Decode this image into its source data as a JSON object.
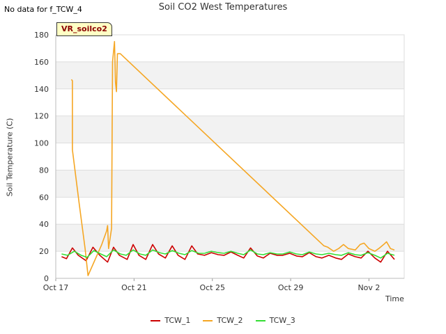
{
  "header": {
    "no_data_note": "No data for f_TCW_4",
    "badge_label": "VR_soilco2"
  },
  "chart_data": {
    "type": "line",
    "title": "Soil CO2 West Temperatures",
    "xlabel": "Time",
    "ylabel": "Soil Temperature (C)",
    "xlim": [
      0,
      17.8
    ],
    "ylim": [
      0,
      180
    ],
    "yticks": [
      0,
      20,
      40,
      60,
      80,
      100,
      120,
      140,
      160,
      180
    ],
    "xticks": [
      {
        "value": 0,
        "label": "Oct 17"
      },
      {
        "value": 4,
        "label": "Oct 21"
      },
      {
        "value": 8,
        "label": "Oct 25"
      },
      {
        "value": 12,
        "label": "Oct 29"
      },
      {
        "value": 16,
        "label": "Nov 2"
      }
    ],
    "grid": true,
    "legend_position": "bottom-center",
    "series": [
      {
        "name": "TCW_1",
        "color": "#cc0000",
        "points": [
          [
            0.3,
            16
          ],
          [
            0.55,
            14.5
          ],
          [
            0.85,
            22.5
          ],
          [
            1.15,
            17
          ],
          [
            1.55,
            13
          ],
          [
            1.9,
            23
          ],
          [
            2.25,
            17
          ],
          [
            2.65,
            12
          ],
          [
            2.95,
            23
          ],
          [
            3.25,
            17
          ],
          [
            3.65,
            14
          ],
          [
            3.95,
            25
          ],
          [
            4.25,
            17
          ],
          [
            4.6,
            14
          ],
          [
            4.95,
            25
          ],
          [
            5.25,
            18
          ],
          [
            5.6,
            15
          ],
          [
            5.95,
            24
          ],
          [
            6.25,
            17
          ],
          [
            6.6,
            14
          ],
          [
            6.95,
            24
          ],
          [
            7.25,
            18
          ],
          [
            7.6,
            17
          ],
          [
            7.95,
            19
          ],
          [
            8.3,
            17.5
          ],
          [
            8.6,
            17
          ],
          [
            8.95,
            19.5
          ],
          [
            9.3,
            17
          ],
          [
            9.6,
            15
          ],
          [
            9.95,
            22.5
          ],
          [
            10.3,
            16.5
          ],
          [
            10.6,
            15
          ],
          [
            10.95,
            18.5
          ],
          [
            11.3,
            17
          ],
          [
            11.6,
            17
          ],
          [
            11.95,
            18.5
          ],
          [
            12.3,
            16.5
          ],
          [
            12.6,
            16
          ],
          [
            12.95,
            19
          ],
          [
            13.3,
            16
          ],
          [
            13.6,
            15
          ],
          [
            13.95,
            17
          ],
          [
            14.3,
            15
          ],
          [
            14.6,
            14
          ],
          [
            14.95,
            18
          ],
          [
            15.3,
            16
          ],
          [
            15.6,
            15
          ],
          [
            15.95,
            20
          ],
          [
            16.3,
            15
          ],
          [
            16.6,
            12
          ],
          [
            16.95,
            20
          ],
          [
            17.3,
            14
          ]
        ]
      },
      {
        "name": "TCW_2",
        "color": "#f5a623",
        "points": [
          [
            0.8,
            147
          ],
          [
            0.85,
            146
          ],
          [
            0.85,
            95
          ],
          [
            1.2,
            55
          ],
          [
            1.5,
            22
          ],
          [
            1.65,
            2
          ],
          [
            2.35,
            25
          ],
          [
            2.6,
            35
          ],
          [
            2.65,
            39
          ],
          [
            2.7,
            22
          ],
          [
            2.85,
            37
          ],
          [
            2.9,
            160
          ],
          [
            3.0,
            175
          ],
          [
            3.05,
            145
          ],
          [
            3.1,
            138
          ],
          [
            3.15,
            166
          ],
          [
            3.3,
            166
          ],
          [
            13.7,
            24
          ],
          [
            13.9,
            23
          ],
          [
            14.2,
            20
          ],
          [
            14.45,
            22
          ],
          [
            14.7,
            25
          ],
          [
            14.95,
            22
          ],
          [
            15.3,
            21
          ],
          [
            15.55,
            25
          ],
          [
            15.75,
            26
          ],
          [
            16.0,
            22
          ],
          [
            16.3,
            20
          ],
          [
            16.5,
            22
          ],
          [
            16.75,
            25
          ],
          [
            16.9,
            27
          ],
          [
            17.1,
            22
          ],
          [
            17.3,
            21
          ]
        ]
      },
      {
        "name": "TCW_3",
        "color": "#33dd33",
        "points": [
          [
            0.3,
            18
          ],
          [
            0.6,
            17
          ],
          [
            0.95,
            20
          ],
          [
            1.3,
            17
          ],
          [
            1.6,
            15.5
          ],
          [
            1.95,
            20.5
          ],
          [
            2.3,
            18
          ],
          [
            2.6,
            16
          ],
          [
            2.95,
            21
          ],
          [
            3.3,
            18
          ],
          [
            3.6,
            17
          ],
          [
            3.95,
            21
          ],
          [
            4.3,
            18
          ],
          [
            4.6,
            17
          ],
          [
            4.95,
            21
          ],
          [
            5.3,
            19
          ],
          [
            5.6,
            18
          ],
          [
            5.95,
            20.5
          ],
          [
            6.3,
            18.5
          ],
          [
            6.6,
            17.5
          ],
          [
            6.95,
            20.5
          ],
          [
            7.3,
            18.5
          ],
          [
            7.6,
            18.5
          ],
          [
            7.95,
            20
          ],
          [
            8.3,
            19
          ],
          [
            8.6,
            18.5
          ],
          [
            8.95,
            20
          ],
          [
            9.3,
            18.5
          ],
          [
            9.6,
            17.5
          ],
          [
            9.95,
            21
          ],
          [
            10.3,
            18
          ],
          [
            10.6,
            17.5
          ],
          [
            10.95,
            19
          ],
          [
            11.3,
            18
          ],
          [
            11.6,
            18
          ],
          [
            11.95,
            19.5
          ],
          [
            12.3,
            18
          ],
          [
            12.6,
            17.5
          ],
          [
            12.95,
            19.5
          ],
          [
            13.3,
            18
          ],
          [
            13.6,
            17.5
          ],
          [
            13.95,
            18.5
          ],
          [
            14.3,
            17.5
          ],
          [
            14.6,
            17
          ],
          [
            14.95,
            19
          ],
          [
            15.3,
            17.5
          ],
          [
            15.6,
            17
          ],
          [
            15.95,
            19
          ],
          [
            16.3,
            17
          ],
          [
            16.6,
            15
          ],
          [
            16.95,
            18.5
          ],
          [
            17.3,
            17
          ]
        ]
      }
    ]
  }
}
